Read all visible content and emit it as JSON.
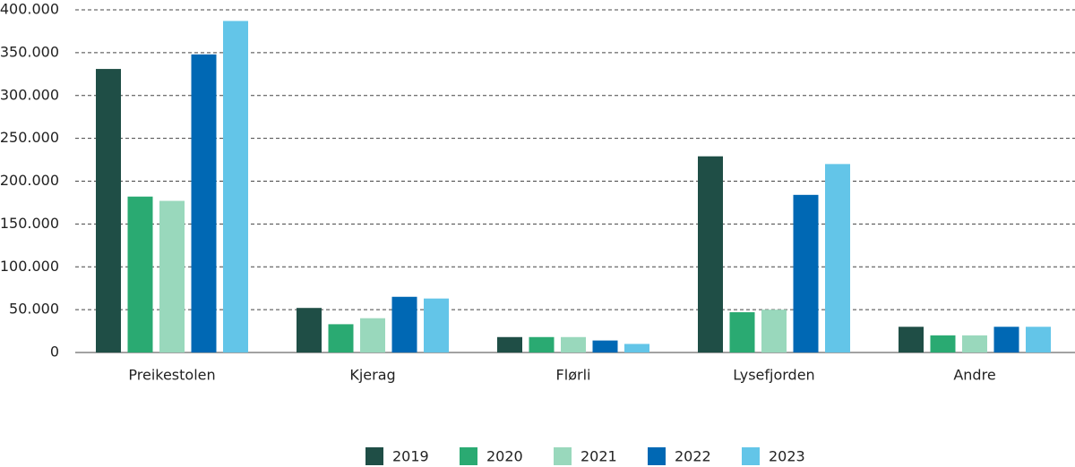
{
  "chart_data": {
    "type": "bar",
    "categories": [
      "Preikestolen",
      "Kjerag",
      "Flørli",
      "Lysefjorden",
      "Andre"
    ],
    "series": [
      {
        "name": "2019",
        "color": "#1f4e46",
        "values": [
          331000,
          52000,
          18000,
          229000,
          30000
        ]
      },
      {
        "name": "2020",
        "color": "#2aaa72",
        "values": [
          182000,
          33000,
          18000,
          47000,
          20000
        ]
      },
      {
        "name": "2021",
        "color": "#99d8bc",
        "values": [
          177000,
          40000,
          18000,
          50000,
          20000
        ]
      },
      {
        "name": "2022",
        "color": "#0068b4",
        "values": [
          348000,
          65000,
          14000,
          184000,
          30000
        ]
      },
      {
        "name": "2023",
        "color": "#63c5e8",
        "values": [
          387000,
          63000,
          10000,
          220000,
          30000
        ]
      }
    ],
    "ylim": [
      0,
      400000
    ],
    "yticks": [
      0,
      {
        "value": 50000,
        "label": "50.000"
      },
      {
        "value": 100000,
        "label": "100.000"
      },
      {
        "value": 150000,
        "label": "150.000"
      },
      {
        "value": 200000,
        "label": "200.000"
      },
      {
        "value": 250000,
        "label": "250.000"
      },
      {
        "value": 300000,
        "label": "300.000"
      },
      {
        "value": 350000,
        "label": "350.000"
      },
      {
        "value": 400000,
        "label": "400.000"
      }
    ],
    "grid": true,
    "legend": "bottom"
  }
}
